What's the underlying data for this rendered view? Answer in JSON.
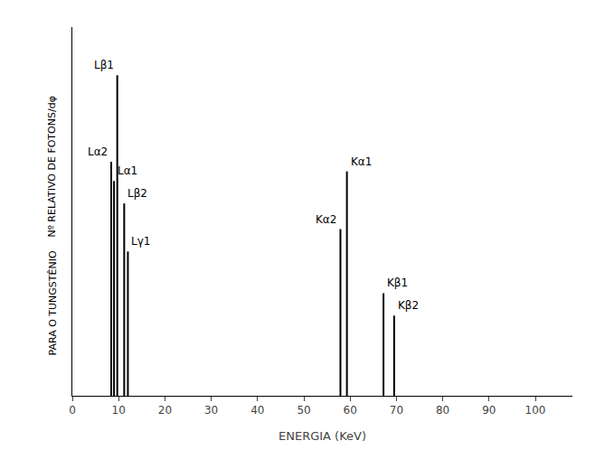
{
  "chart_data": {
    "type": "stem",
    "x": [
      8.4,
      9.0,
      9.7,
      11.2,
      12.0,
      57.9,
      59.3,
      67.2,
      69.5
    ],
    "values": [
      0.73,
      0.67,
      1.0,
      0.6,
      0.45,
      0.52,
      0.7,
      0.32,
      0.25
    ],
    "labels": [
      "Lα2",
      "Lα1",
      "Lβ1",
      "Lβ2",
      "Lγ1",
      "Kα2",
      "Kα1",
      "Kβ1",
      "Kβ2"
    ],
    "color": "#000000",
    "xlabel": "ENERGIA (KeV)",
    "ylabel": [
      "Nº RELATIVO DE FOTONS/dφ",
      "PARA O TUNGSTÊNIO"
    ],
    "xlim": [
      0,
      108
    ],
    "ylim": [
      0,
      1.15
    ],
    "xticks": [
      0,
      10,
      20,
      30,
      40,
      50,
      60,
      70,
      80,
      90,
      100
    ],
    "yticks": [],
    "tick_labels": "x",
    "grid": false
  }
}
